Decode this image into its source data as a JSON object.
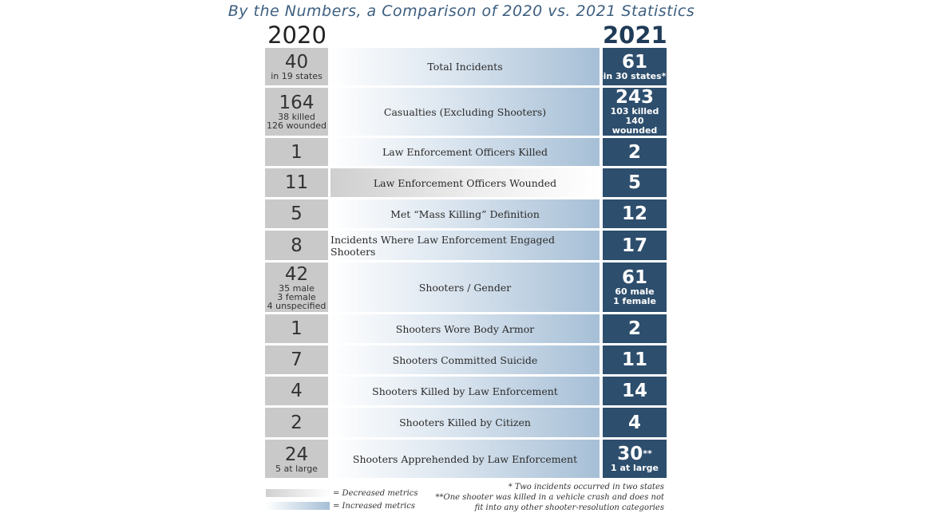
{
  "title": "By the Numbers, a Comparison of 2020 vs. 2021 Statistics",
  "years": {
    "left": "2020",
    "right": "2021"
  },
  "rows": [
    {
      "label": "Total Incidents",
      "metric": "increased",
      "y2020": {
        "value": "40",
        "details": [
          "in 19 states"
        ]
      },
      "y2021": {
        "value": "61",
        "mark": "",
        "details": [
          "in 30 states*"
        ]
      }
    },
    {
      "label": "Casualties (Excluding Shooters)",
      "metric": "increased",
      "y2020": {
        "value": "164",
        "details": [
          "38 killed",
          "126 wounded"
        ]
      },
      "y2021": {
        "value": "243",
        "mark": "",
        "details": [
          "103 killed",
          "140 wounded"
        ]
      }
    },
    {
      "label": "Law Enforcement Officers Killed",
      "metric": "increased",
      "y2020": {
        "value": "1",
        "details": []
      },
      "y2021": {
        "value": "2",
        "mark": "",
        "details": []
      }
    },
    {
      "label": "Law Enforcement Officers Wounded",
      "metric": "decreased",
      "y2020": {
        "value": "11",
        "details": []
      },
      "y2021": {
        "value": "5",
        "mark": "",
        "details": []
      }
    },
    {
      "label": "Met “Mass Killing” Definition",
      "metric": "increased",
      "y2020": {
        "value": "5",
        "details": []
      },
      "y2021": {
        "value": "12",
        "mark": "",
        "details": []
      }
    },
    {
      "label": "Incidents Where Law Enforcement Engaged Shooters",
      "metric": "increased",
      "y2020": {
        "value": "8",
        "details": []
      },
      "y2021": {
        "value": "17",
        "mark": "",
        "details": []
      }
    },
    {
      "label": "Shooters / Gender",
      "metric": "increased",
      "y2020": {
        "value": "42",
        "details": [
          "35 male",
          "3 female",
          "4 unspecified"
        ]
      },
      "y2021": {
        "value": "61",
        "mark": "",
        "details": [
          "60 male",
          "1 female"
        ]
      }
    },
    {
      "label": "Shooters Wore Body Armor",
      "metric": "increased",
      "y2020": {
        "value": "1",
        "details": []
      },
      "y2021": {
        "value": "2",
        "mark": "",
        "details": []
      }
    },
    {
      "label": "Shooters Committed Suicide",
      "metric": "increased",
      "y2020": {
        "value": "7",
        "details": []
      },
      "y2021": {
        "value": "11",
        "mark": "",
        "details": []
      }
    },
    {
      "label": "Shooters Killed by Law Enforcement",
      "metric": "increased",
      "y2020": {
        "value": "4",
        "details": []
      },
      "y2021": {
        "value": "14",
        "mark": "",
        "details": []
      }
    },
    {
      "label": "Shooters Killed by Citizen",
      "metric": "increased",
      "y2020": {
        "value": "2",
        "details": []
      },
      "y2021": {
        "value": "4",
        "mark": "",
        "details": []
      }
    },
    {
      "label": "Shooters Apprehended by Law Enforcement",
      "metric": "increased",
      "y2020": {
        "value": "24",
        "details": [
          "5 at large"
        ]
      },
      "y2021": {
        "value": "30",
        "mark": "**",
        "details": [
          "1 at large"
        ]
      }
    }
  ],
  "legend": {
    "decreased": "= Decreased metrics",
    "increased": "= Increased metrics"
  },
  "notes": [
    "* Two incidents occurred in two states",
    "**One shooter was killed in a vehicle crash and does not",
    "fit into any other shooter-resolution categories"
  ]
}
